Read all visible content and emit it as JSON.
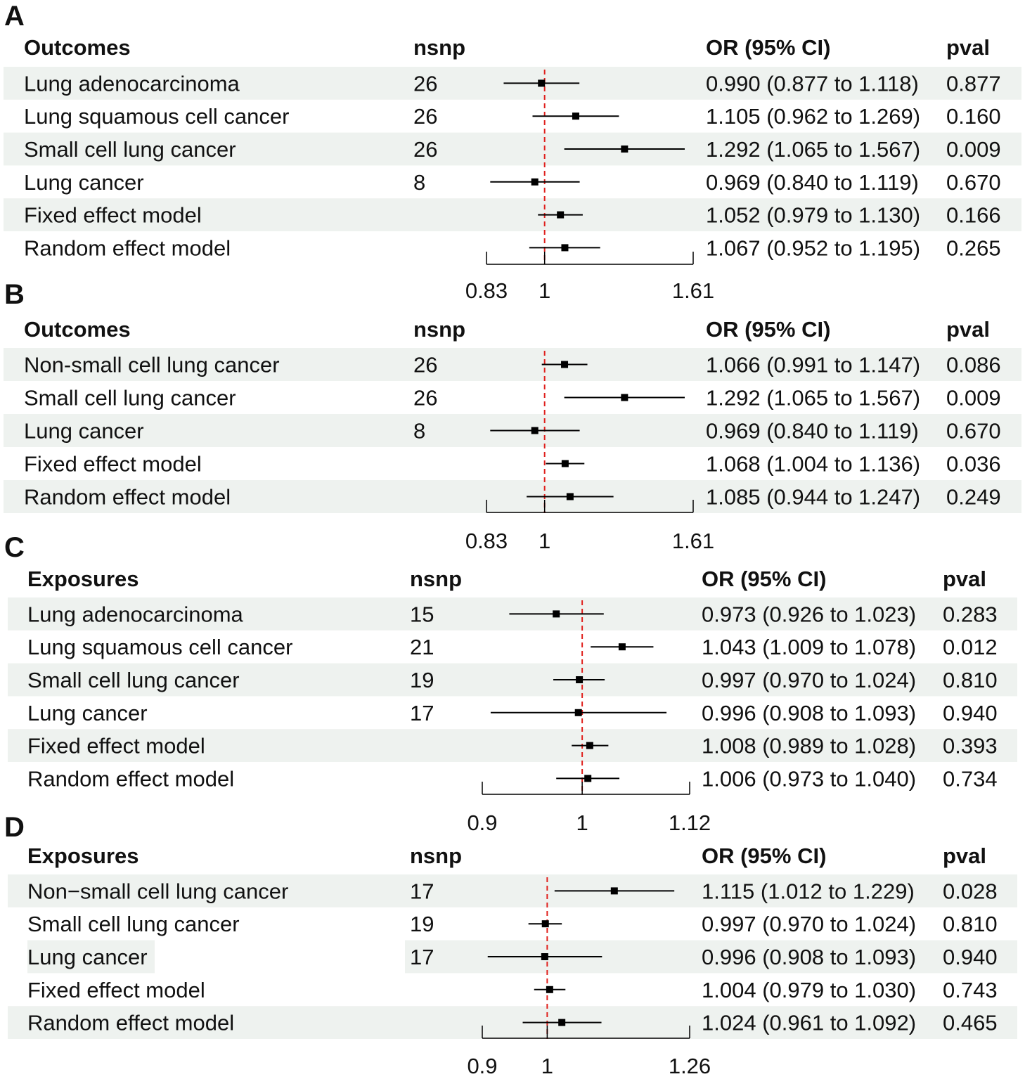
{
  "figure": {
    "colors": {
      "row_shade": "#eef2ef",
      "reference_line": "#e0201d",
      "marker": "#000000",
      "text": "#111111"
    }
  },
  "chart_data": [
    {
      "type": "forest",
      "panel": "A",
      "headers": {
        "name": "Outcomes",
        "nsnp": "nsnp",
        "or": "OR (95% CI)",
        "pval": "pval"
      },
      "scale": "log",
      "reference": 1,
      "ticks": [
        "0.83",
        "1",
        "1.61"
      ],
      "rows": [
        {
          "name": "Lung adenocarcinoma",
          "nsnp": "26",
          "or": 0.99,
          "lo": 0.877,
          "hi": 1.118,
          "or_text": "0.990 (0.877 to 1.118)",
          "pval": "0.877"
        },
        {
          "name": "Lung squamous cell cancer",
          "nsnp": "26",
          "or": 1.105,
          "lo": 0.962,
          "hi": 1.269,
          "or_text": "1.105 (0.962 to 1.269)",
          "pval": "0.160"
        },
        {
          "name": "Small cell lung cancer",
          "nsnp": "26",
          "or": 1.292,
          "lo": 1.065,
          "hi": 1.567,
          "or_text": "1.292 (1.065 to 1.567)",
          "pval": "0.009"
        },
        {
          "name": "Lung cancer",
          "nsnp": "8",
          "or": 0.969,
          "lo": 0.84,
          "hi": 1.119,
          "or_text": "0.969 (0.840 to 1.119)",
          "pval": "0.670"
        },
        {
          "name": "Fixed effect model",
          "nsnp": "",
          "or": 1.052,
          "lo": 0.979,
          "hi": 1.13,
          "or_text": "1.052 (0.979 to 1.130)",
          "pval": "0.166"
        },
        {
          "name": "Random effect model",
          "nsnp": "",
          "or": 1.067,
          "lo": 0.952,
          "hi": 1.195,
          "or_text": "1.067 (0.952 to 1.195)",
          "pval": "0.265"
        }
      ]
    },
    {
      "type": "forest",
      "panel": "B",
      "headers": {
        "name": "Outcomes",
        "nsnp": "nsnp",
        "or": "OR (95% CI)",
        "pval": "pval"
      },
      "scale": "log",
      "reference": 1,
      "ticks": [
        "0.83",
        "1",
        "1.61"
      ],
      "rows": [
        {
          "name": "Non-small cell lung cancer",
          "nsnp": "26",
          "or": 1.066,
          "lo": 0.991,
          "hi": 1.147,
          "or_text": "1.066 (0.991 to 1.147)",
          "pval": "0.086"
        },
        {
          "name": "Small cell lung cancer",
          "nsnp": "26",
          "or": 1.292,
          "lo": 1.065,
          "hi": 1.567,
          "or_text": "1.292 (1.065 to 1.567)",
          "pval": "0.009"
        },
        {
          "name": "Lung cancer",
          "nsnp": "8",
          "or": 0.969,
          "lo": 0.84,
          "hi": 1.119,
          "or_text": "0.969 (0.840 to 1.119)",
          "pval": "0.670"
        },
        {
          "name": "Fixed effect model",
          "nsnp": "",
          "or": 1.068,
          "lo": 1.004,
          "hi": 1.136,
          "or_text": "1.068 (1.004 to 1.136)",
          "pval": "0.036"
        },
        {
          "name": "Random effect model",
          "nsnp": "",
          "or": 1.085,
          "lo": 0.944,
          "hi": 1.247,
          "or_text": "1.085 (0.944 to 1.247)",
          "pval": "0.249"
        }
      ]
    },
    {
      "type": "forest",
      "panel": "C",
      "headers": {
        "name": "Exposures",
        "nsnp": "nsnp",
        "or": "OR (95% CI)",
        "pval": "pval"
      },
      "scale": "log",
      "reference": 1,
      "ticks": [
        "0.9",
        "1",
        "1.12"
      ],
      "rows": [
        {
          "name": "Lung adenocarcinoma",
          "nsnp": "15",
          "or": 0.973,
          "lo": 0.926,
          "hi": 1.023,
          "or_text": "0.973 (0.926 to 1.023)",
          "pval": "0.283"
        },
        {
          "name": "Lung squamous cell cancer",
          "nsnp": "21",
          "or": 1.043,
          "lo": 1.009,
          "hi": 1.078,
          "or_text": "1.043 (1.009 to 1.078)",
          "pval": "0.012"
        },
        {
          "name": "Small cell lung cancer",
          "nsnp": "19",
          "or": 0.997,
          "lo": 0.97,
          "hi": 1.024,
          "or_text": "0.997 (0.970 to 1.024)",
          "pval": "0.810"
        },
        {
          "name": "Lung cancer",
          "nsnp": "17",
          "or": 0.996,
          "lo": 0.908,
          "hi": 1.093,
          "or_text": "0.996 (0.908 to 1.093)",
          "pval": "0.940"
        },
        {
          "name": "Fixed effect model",
          "nsnp": "",
          "or": 1.008,
          "lo": 0.989,
          "hi": 1.028,
          "or_text": "1.008 (0.989 to 1.028)",
          "pval": "0.393"
        },
        {
          "name": "Random effect model",
          "nsnp": "",
          "or": 1.006,
          "lo": 0.973,
          "hi": 1.04,
          "or_text": "1.006 (0.973 to 1.040)",
          "pval": "0.734"
        }
      ]
    },
    {
      "type": "forest",
      "panel": "D",
      "headers": {
        "name": "Exposures",
        "nsnp": "nsnp",
        "or": "OR (95% CI)",
        "pval": "pval"
      },
      "scale": "log",
      "reference": 1,
      "ticks": [
        "0.9",
        "1",
        "1.26"
      ],
      "rows": [
        {
          "name": "Non−small cell lung cancer",
          "nsnp": "17",
          "or": 1.115,
          "lo": 1.012,
          "hi": 1.229,
          "or_text": "1.115 (1.012 to 1.229)",
          "pval": "0.028"
        },
        {
          "name": "Small cell lung cancer",
          "nsnp": "19",
          "or": 0.997,
          "lo": 0.97,
          "hi": 1.024,
          "or_text": "0.997 (0.970 to 1.024)",
          "pval": "0.810"
        },
        {
          "name": "Lung cancer",
          "nsnp": "17",
          "or": 0.996,
          "lo": 0.908,
          "hi": 1.093,
          "or_text": "0.996 (0.908 to 1.093)",
          "pval": "0.940"
        },
        {
          "name": "Fixed effect model",
          "nsnp": "",
          "or": 1.004,
          "lo": 0.979,
          "hi": 1.03,
          "or_text": "1.004 (0.979 to 1.030)",
          "pval": "0.743"
        },
        {
          "name": "Random effect model",
          "nsnp": "",
          "or": 1.024,
          "lo": 0.961,
          "hi": 1.092,
          "or_text": "1.024 (0.961 to 1.092)",
          "pval": "0.465"
        }
      ]
    }
  ]
}
